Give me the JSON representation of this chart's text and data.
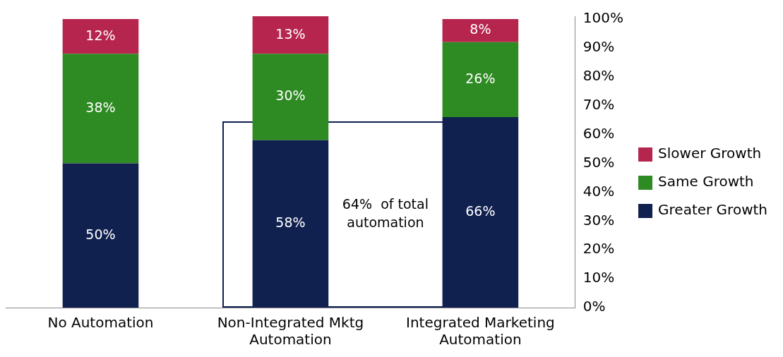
{
  "chart_data": {
    "type": "bar",
    "stacked": true,
    "categories": [
      "No Automation",
      "Non-Integrated Mktg Automation",
      "Integrated Marketing Automation"
    ],
    "series": [
      {
        "name": "Greater Growth",
        "color": "#10204f",
        "values": [
          50,
          58,
          66
        ]
      },
      {
        "name": "Same Growth",
        "color": "#2e8a22",
        "values": [
          38,
          30,
          26
        ]
      },
      {
        "name": "Slower Growth",
        "color": "#b5254e",
        "values": [
          12,
          13,
          8
        ]
      }
    ],
    "ylim": [
      0,
      101
    ],
    "yticks": [
      {
        "value": 0,
        "label": "0%"
      },
      {
        "value": 10,
        "label": "10%"
      },
      {
        "value": 20,
        "label": "20%"
      },
      {
        "value": 30,
        "label": "30%"
      },
      {
        "value": 40,
        "label": "40%"
      },
      {
        "value": 50,
        "label": "50%"
      },
      {
        "value": 60,
        "label": "60%"
      },
      {
        "value": 70,
        "label": "70%"
      },
      {
        "value": 80,
        "label": "80%"
      },
      {
        "value": 90,
        "label": "90%"
      },
      {
        "value": 100,
        "label": "100%"
      }
    ],
    "value_labels": [
      [
        "50%",
        "58%",
        "66%"
      ],
      [
        "38%",
        "30%",
        "26%"
      ],
      [
        "12%",
        "13%",
        "8%"
      ]
    ],
    "grid": false,
    "legend": "right",
    "annotations": [
      "64%  of total automation"
    ]
  }
}
